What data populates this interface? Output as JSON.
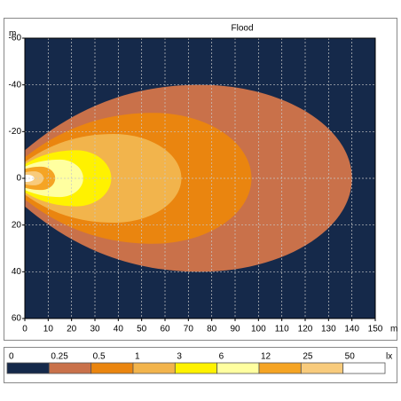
{
  "chart_data": {
    "type": "contour",
    "title": "Flood",
    "x_label": "m",
    "y_label": "m",
    "xlim": [
      0,
      150
    ],
    "ylim": [
      -60,
      60
    ],
    "xticks": [
      0,
      10,
      20,
      30,
      40,
      50,
      60,
      70,
      80,
      90,
      100,
      110,
      120,
      130,
      140,
      150
    ],
    "yticks": [
      -60,
      -40,
      -20,
      0,
      20,
      40,
      60
    ],
    "grid": true,
    "background_color": "#15294a",
    "levels": [
      0,
      0.25,
      0.5,
      1,
      3,
      6,
      12,
      25,
      50
    ],
    "level_colors": [
      "#15294a",
      "#c9714a",
      "#ea850f",
      "#f2b44c",
      "#fff200",
      "#ffffa0",
      "#f5a424",
      "#f8cb7c",
      "#ffffff"
    ],
    "unit": "lx",
    "contours": [
      {
        "level": 0.25,
        "reach": 140,
        "peak_x": 75,
        "half_width": 40,
        "edge_half_width": 12
      },
      {
        "level": 0.5,
        "reach": 97,
        "peak_x": 55,
        "half_width": 28,
        "edge_half_width": 9
      },
      {
        "level": 1,
        "reach": 67,
        "peak_x": 38,
        "half_width": 19,
        "edge_half_width": 7
      },
      {
        "level": 3,
        "reach": 37,
        "peak_x": 22,
        "half_width": 12,
        "edge_half_width": 6
      },
      {
        "level": 6,
        "reach": 25,
        "peak_x": 15,
        "half_width": 8,
        "edge_half_width": 5
      },
      {
        "level": 12,
        "reach": 13,
        "peak_x": 7,
        "half_width": 5,
        "edge_half_width": 4
      },
      {
        "level": 25,
        "reach": 8,
        "peak_x": 4,
        "half_width": 3,
        "edge_half_width": 2.5
      },
      {
        "level": 50,
        "reach": 4,
        "peak_x": 1,
        "half_width": 1.5,
        "edge_half_width": 1.5
      }
    ]
  }
}
